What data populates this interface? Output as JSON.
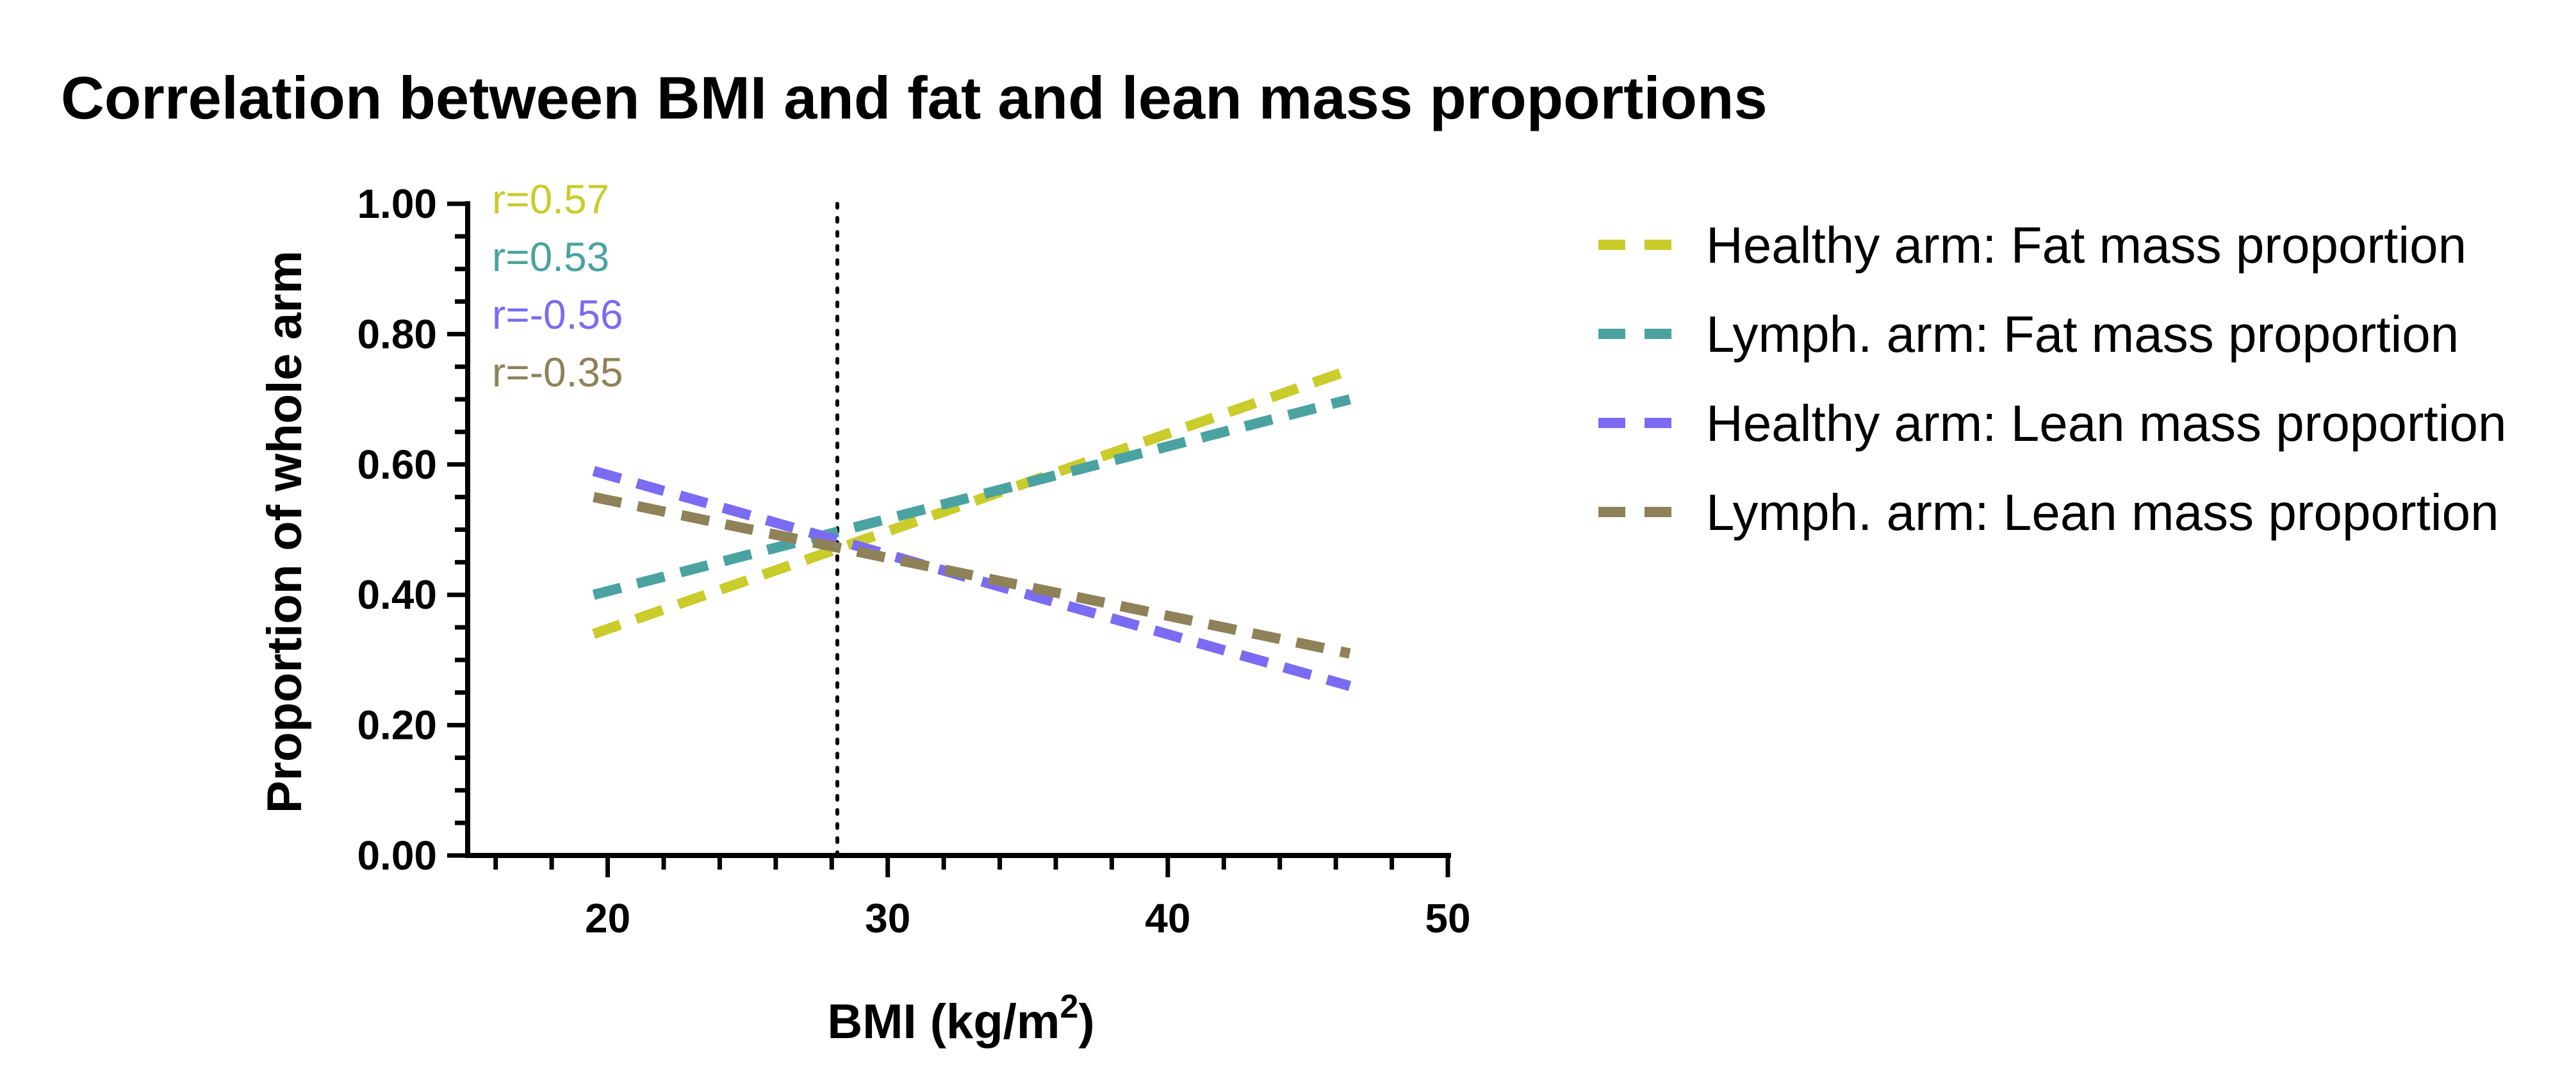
{
  "chart_data": {
    "type": "line",
    "title": "Correlation between BMI and fat and lean mass proportions",
    "xlabel": "BMI (kg/m",
    "xlabel_superscript": "2",
    "xlabel_suffix": ")",
    "ylabel": "Proportion of whole arm",
    "xlim": [
      15,
      50
    ],
    "ylim": [
      0,
      1
    ],
    "x_ticks": [
      20,
      30,
      40,
      50
    ],
    "y_ticks": [
      "0.00",
      "0.20",
      "0.40",
      "0.60",
      "0.80",
      "1.00"
    ],
    "reference_line_x": 28.2,
    "series": [
      {
        "name": "Healthy arm: Fat mass proportion",
        "color": "#c9cc2a",
        "r": "r=0.57",
        "x": [
          19.5,
          46.5
        ],
        "y": [
          0.34,
          0.745
        ]
      },
      {
        "name": "Lymph. arm: Fat mass proportion",
        "color": "#4aa3a0",
        "r": "r=0.53",
        "x": [
          19.5,
          46.5
        ],
        "y": [
          0.4,
          0.7
        ]
      },
      {
        "name": "Healthy arm: Lean mass proportion",
        "color": "#7a6cf2",
        "r": "r=-0.56",
        "x": [
          19.5,
          46.5
        ],
        "y": [
          0.59,
          0.26
        ]
      },
      {
        "name": "Lymph. arm: Lean mass proportion",
        "color": "#8f8158",
        "r": "r=-0.35",
        "x": [
          19.5,
          46.5
        ],
        "y": [
          0.55,
          0.31
        ]
      }
    ]
  }
}
